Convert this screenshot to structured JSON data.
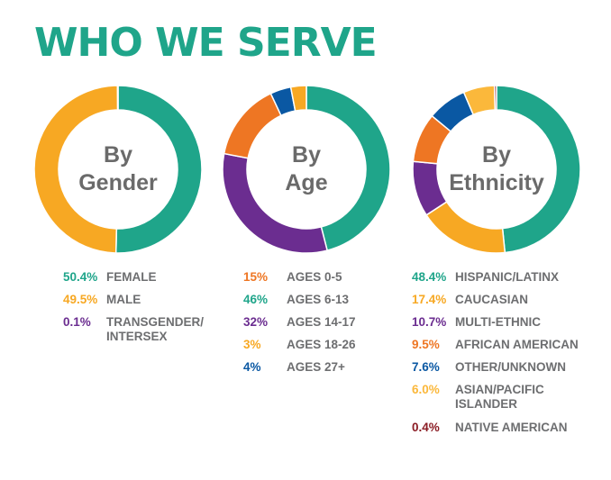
{
  "header": {
    "title": "WHO WE SERVE"
  },
  "chart_data": [
    {
      "type": "pie",
      "center_label": [
        "By",
        "Gender"
      ],
      "start_angle": 0,
      "slices": [
        {
          "label": "FEMALE",
          "value": 50.4,
          "display": "50.4%",
          "color": "#1fa58a"
        },
        {
          "label": "MALE",
          "value": 49.5,
          "display": "49.5%",
          "color": "#f7a823"
        },
        {
          "label": "TRANSGENDER/ INTERSEX",
          "lines": [
            "TRANSGENDER/",
            "INTERSEX"
          ],
          "value": 0.1,
          "display": "0.1%",
          "color": "#6b2d90"
        }
      ]
    },
    {
      "type": "pie",
      "center_label": [
        "By",
        "Age"
      ],
      "start_angle": 0,
      "slices": [
        {
          "label": "AGES 6-13",
          "value": 46,
          "display": "46%",
          "color": "#1fa58a"
        },
        {
          "label": "AGES 14-17",
          "value": 32,
          "display": "32%",
          "color": "#6b2d90"
        },
        {
          "label": "AGES 0-5",
          "value": 15,
          "display": "15%",
          "color": "#ee7623"
        },
        {
          "label": "AGES 27+",
          "value": 4,
          "display": "4%",
          "color": "#0a58a3"
        },
        {
          "label": "AGES 18-26",
          "value": 3,
          "display": "3%",
          "color": "#f7a823"
        }
      ],
      "legend_order": [
        2,
        0,
        1,
        4,
        3
      ]
    },
    {
      "type": "pie",
      "center_label": [
        "By",
        "Ethnicity"
      ],
      "start_angle": 0,
      "slices": [
        {
          "label": "HISPANIC/LATINX",
          "value": 48.4,
          "display": "48.4%",
          "color": "#1fa58a"
        },
        {
          "label": "CAUCASIAN",
          "value": 17.4,
          "display": "17.4%",
          "color": "#f7a823"
        },
        {
          "label": "MULTI-ETHNIC",
          "value": 10.7,
          "display": "10.7%",
          "color": "#6b2d90"
        },
        {
          "label": "AFRICAN AMERICAN",
          "value": 9.5,
          "display": "9.5%",
          "color": "#ee7623"
        },
        {
          "label": "OTHER/UNKNOWN",
          "value": 7.6,
          "display": "7.6%",
          "color": "#0a58a3"
        },
        {
          "label": "ASIAN/PACIFIC ISLANDER",
          "lines": [
            "ASIAN/PACIFIC",
            "ISLANDER"
          ],
          "value": 6.0,
          "display": "6.0%",
          "color": "#fbb83b"
        },
        {
          "label": "NATIVE AMERICAN",
          "value": 0.4,
          "display": "0.4%",
          "color": "#8b1c24"
        }
      ]
    }
  ]
}
